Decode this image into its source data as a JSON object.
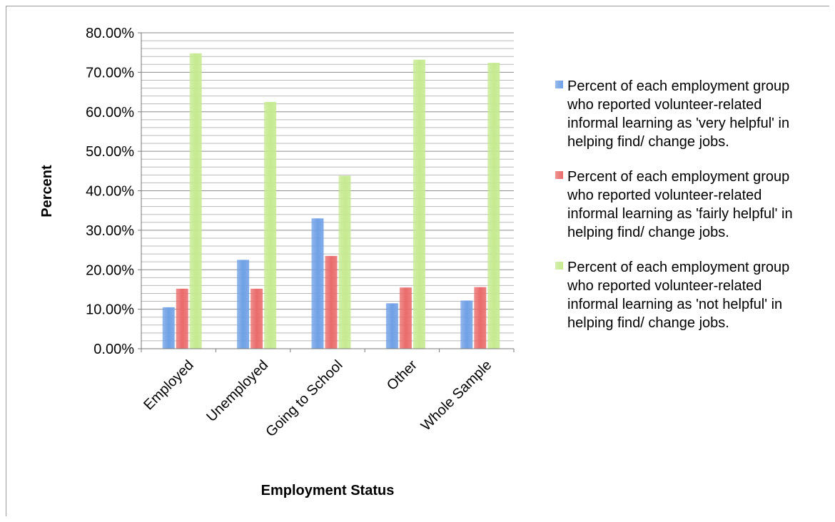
{
  "chart_data": {
    "type": "bar",
    "categories": [
      "Employed",
      "Unemployed",
      "Going to School",
      "Other",
      "Whole Sample"
    ],
    "series": [
      {
        "name": "Percent of each employment group who reported volunteer-related informal learning as 'very helpful' in helping find/ change jobs.",
        "color": "#6fa0e6",
        "values": [
          10.5,
          22.5,
          33.0,
          11.5,
          12.2
        ]
      },
      {
        "name": "Percent of each employment group who reported volunteer-related informal learning as 'fairly helpful' in helping find/ change jobs.",
        "color": "#ea6b6b",
        "values": [
          15.2,
          15.2,
          23.5,
          15.5,
          15.6
        ]
      },
      {
        "name": "Percent of each employment group who reported volunteer-related informal learning as 'not helpful' in helping find/ change jobs.",
        "color": "#c5ea8f",
        "values": [
          74.8,
          62.5,
          43.8,
          73.2,
          72.4
        ]
      }
    ],
    "xlabel": "Employment Status",
    "ylabel": "Percent",
    "ylim": [
      0,
      80
    ],
    "y_ticks": [
      "0.00%",
      "10.00%",
      "20.00%",
      "30.00%",
      "40.00%",
      "50.00%",
      "60.00%",
      "70.00%",
      "80.00%"
    ],
    "y_tick_values": [
      0,
      10,
      20,
      30,
      40,
      50,
      60,
      70,
      80
    ],
    "grid": true,
    "legend_position": "right"
  }
}
